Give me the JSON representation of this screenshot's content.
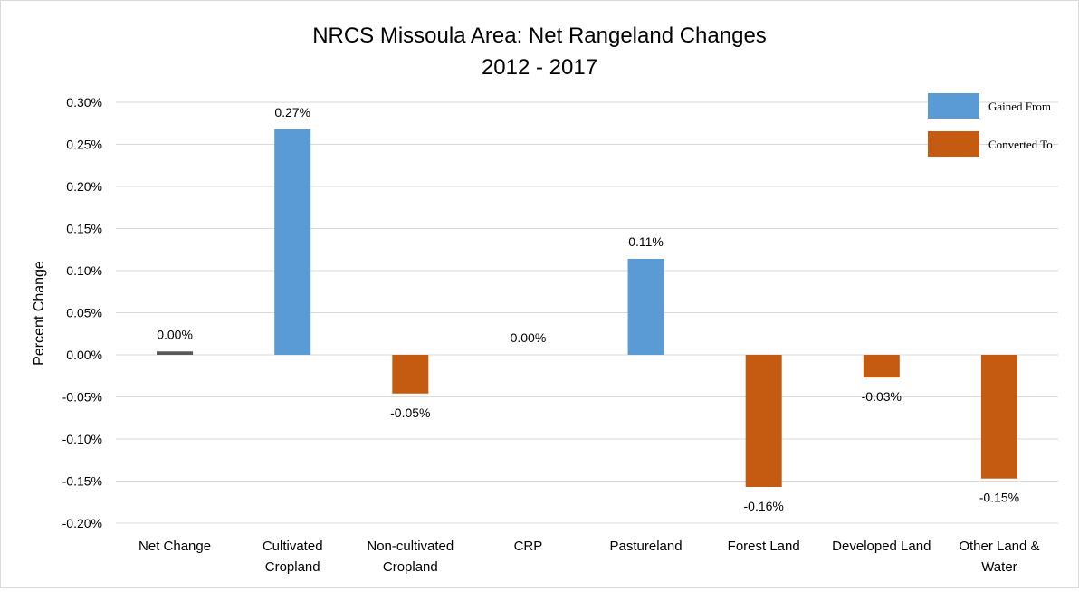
{
  "chart_data": {
    "type": "bar",
    "title": "NRCS Missoula Area: Net Rangeland Changes",
    "subtitle": "2012 - 2017",
    "ylabel": "Percent Change",
    "ylim": [
      -0.2,
      0.3
    ],
    "y_ticks": [
      "0.30%",
      "0.25%",
      "0.20%",
      "0.15%",
      "0.10%",
      "0.05%",
      "0.00%",
      "-0.05%",
      "-0.10%",
      "-0.15%",
      "-0.20%"
    ],
    "y_tick_values": [
      0.3,
      0.25,
      0.2,
      0.15,
      0.1,
      0.05,
      0.0,
      -0.05,
      -0.1,
      -0.15,
      -0.2
    ],
    "grid": true,
    "legend_position": "top-right",
    "categories": [
      [
        "Net Change"
      ],
      [
        "Cultivated",
        "Cropland"
      ],
      [
        "Non-cultivated",
        "Cropland"
      ],
      [
        "CRP"
      ],
      [
        "Pastureland"
      ],
      [
        "Forest Land"
      ],
      [
        "Developed Land"
      ],
      [
        "Other Land &",
        "Water"
      ]
    ],
    "values": [
      0.004,
      0.268,
      -0.046,
      0.0,
      0.114,
      -0.157,
      -0.027,
      -0.147
    ],
    "data_labels": [
      "0.00%",
      "0.27%",
      "-0.05%",
      "0.00%",
      "0.11%",
      "-0.16%",
      "-0.03%",
      "-0.15%"
    ],
    "bar_kind": [
      "net",
      "gain",
      "loss",
      "gain",
      "gain",
      "loss",
      "loss",
      "loss"
    ],
    "colors": {
      "net": "#595959",
      "gain": "#5b9bd5",
      "loss": "#c55a11",
      "grid": "#d9d9d9",
      "text": "#000000"
    },
    "legend": [
      {
        "name": "Gained From",
        "color": "#5b9bd5"
      },
      {
        "name": "Converted To",
        "color": "#c55a11"
      }
    ]
  }
}
